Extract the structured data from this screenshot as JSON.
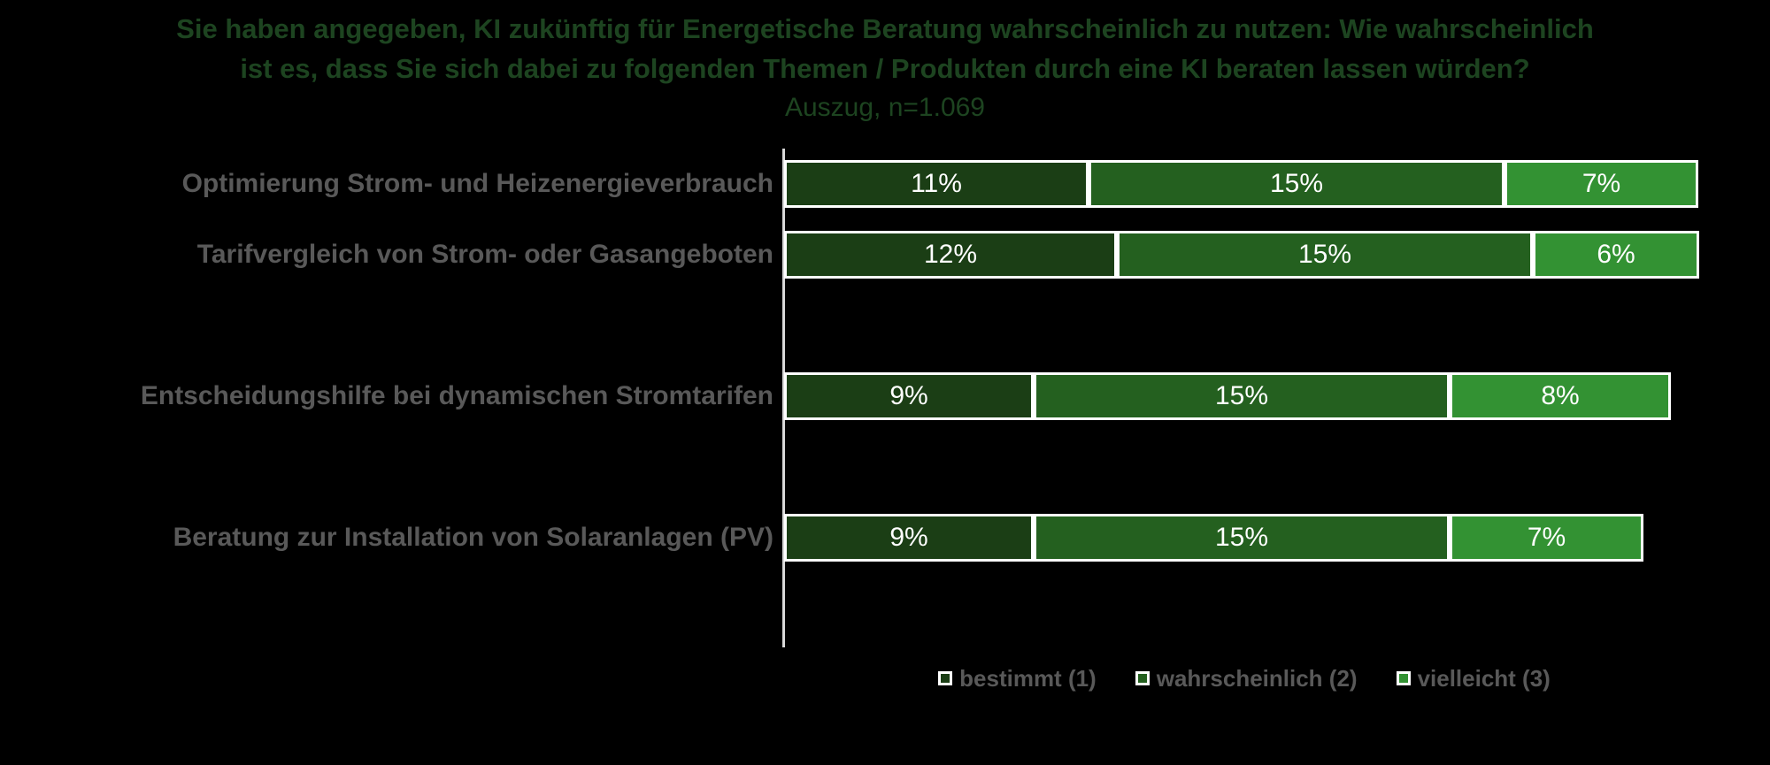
{
  "title": {
    "line1": "Sie haben angegeben, KI zukünftig für Energetische Beratung wahrscheinlich zu nutzen: Wie wahrscheinlich",
    "line2": "ist es, dass Sie sich dabei zu folgenden Themen / Produkten durch eine KI beraten lassen würden?",
    "subtitle": "Auszug, n=1.069"
  },
  "colors": {
    "series1": "#1b3e15",
    "series2": "#24601f",
    "series3": "#339233",
    "title_text": "#1d4420",
    "label_text": "#595959",
    "axis_line": "#d9d9d9",
    "data_label": "#ffffff",
    "segment_border": "#ffffff",
    "background": "#000000"
  },
  "chart_data": {
    "type": "bar",
    "orientation": "horizontal",
    "stacked": true,
    "unit": "%",
    "title": "Sie haben angegeben, KI zukünftig für Energetische Beratung wahrscheinlich zu nutzen: Wie wahrscheinlich ist es, dass Sie sich dabei zu folgenden Themen / Produkten durch eine KI beraten lassen würden?",
    "subtitle": "Auszug, n=1.069",
    "sample_size": "n=1.069",
    "categories": [
      "Optimierung Strom- und Heizenergieverbrauch",
      "Tarifvergleich von Strom- oder Gasangeboten",
      "Entscheidungshilfe bei dynamischen Stromtarifen",
      "Beratung zur Installation von Solaranlagen (PV)"
    ],
    "series": [
      {
        "key": "bestimmt",
        "name": "bestimmt (1)",
        "color": "#1b3e15",
        "values": [
          11,
          12,
          9,
          9
        ]
      },
      {
        "key": "wahrscheinlich",
        "name": "wahrscheinlich (2)",
        "color": "#24601f",
        "values": [
          15,
          15,
          15,
          15
        ]
      },
      {
        "key": "vielleicht",
        "name": "vielleicht (3)",
        "color": "#339233",
        "values": [
          7,
          6,
          8,
          7
        ]
      }
    ],
    "data_labels": [
      [
        "11%",
        "15%",
        "7%"
      ],
      [
        "12%",
        "15%",
        "6%"
      ],
      [
        "9%",
        "15%",
        "8%"
      ],
      [
        "9%",
        "15%",
        "7%"
      ]
    ],
    "totals": [
      33,
      33,
      32,
      31
    ],
    "layout": {
      "legend_position": "bottom-center",
      "grid": false,
      "x_axis_visible": false,
      "row_slots": [
        0,
        1,
        3,
        5
      ],
      "total_slots": 7
    }
  },
  "legend": {
    "items": [
      {
        "label": "bestimmt (1)"
      },
      {
        "label": "wahrscheinlich (2)"
      },
      {
        "label": "vielleicht (3)"
      }
    ]
  }
}
